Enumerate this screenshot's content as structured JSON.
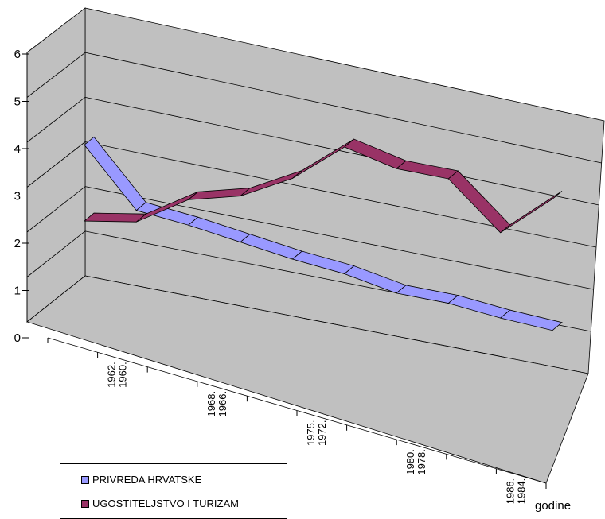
{
  "chart_data": {
    "type": "line",
    "subtype": "3d-ribbon",
    "title": "",
    "xlabel": "godine",
    "ylabel": "",
    "ylim": [
      0,
      6
    ],
    "yticks": [
      "0",
      "1",
      "2",
      "3",
      "4",
      "5",
      "6"
    ],
    "categories": [
      "1960.",
      "1962.",
      "1966.",
      "1968.",
      "1972.",
      "1975.",
      "1978.",
      "1980.",
      "1984.",
      "1986."
    ],
    "x_tick_rows": [
      [
        "1962.",
        "1960."
      ],
      [
        "1968.",
        "1966."
      ],
      [
        "1975.",
        "1972."
      ],
      [
        "1980.",
        "1978."
      ],
      [
        "1986.",
        "1984."
      ]
    ],
    "series": [
      {
        "name": "PRIVREDA HRVATSKE",
        "color": "#9999ff",
        "values": [
          3.2,
          2.0,
          1.9,
          1.75,
          1.6,
          1.5,
          1.3,
          1.3,
          1.2,
          1.15
        ]
      },
      {
        "name": "UGOSTITELJSTVO I TURIZAM",
        "color": "#993366",
        "values": [
          1.55,
          1.75,
          2.45,
          2.75,
          3.35,
          4.25,
          4.0,
          4.0,
          3.05,
          4.0
        ]
      }
    ],
    "legend_position": "bottom-left",
    "grid": true,
    "wall_color": "#c0c0c0"
  }
}
